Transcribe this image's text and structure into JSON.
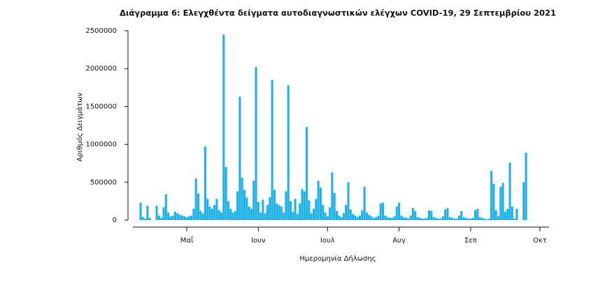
{
  "chart_data": {
    "type": "bar",
    "title": "Διάγραμμα 6: Ελεγχθέντα δείγματα αυτοδιαγνωστικών ελέγχων COVID-19, 29 Σεπτεμβρίου 2021",
    "x_label": "Ημερομηνία Δήλωσης",
    "y_label": "Αριθμός Δειγμάτων",
    "color": "#1ab0e8",
    "ylim": [
      0,
      2500000
    ],
    "yticks": [
      0,
      500000,
      1000000,
      1500000,
      2000000,
      2500000
    ],
    "categories": [
      null,
      null,
      null,
      null,
      null,
      null,
      null,
      null,
      null,
      null,
      null,
      null,
      null,
      null,
      null,
      null,
      null,
      null,
      null,
      null,
      "Μαΐ",
      null,
      null,
      null,
      null,
      null,
      null,
      null,
      null,
      null,
      null,
      null,
      null,
      null,
      null,
      null,
      null,
      null,
      null,
      null,
      null,
      null,
      null,
      null,
      null,
      null,
      null,
      null,
      null,
      null,
      null,
      "Ιουν",
      null,
      null,
      null,
      null,
      null,
      null,
      null,
      null,
      null,
      null,
      null,
      null,
      null,
      null,
      null,
      null,
      null,
      null,
      null,
      null,
      null,
      null,
      null,
      null,
      null,
      null,
      null,
      null,
      null,
      "Ιουλ",
      null,
      null,
      null,
      null,
      null,
      null,
      null,
      null,
      null,
      null,
      null,
      null,
      null,
      null,
      null,
      null,
      null,
      null,
      null,
      null,
      null,
      null,
      null,
      null,
      null,
      null,
      null,
      null,
      null,
      null,
      "Αυγ",
      null,
      null,
      null,
      null,
      null,
      null,
      null,
      null,
      null,
      null,
      null,
      null,
      null,
      null,
      null,
      null,
      null,
      null,
      null,
      null,
      null,
      null,
      null,
      null,
      null,
      null,
      null,
      null,
      null,
      null,
      "Σεπ",
      null,
      null,
      null,
      null,
      null,
      null,
      null,
      null,
      null,
      null,
      null,
      null,
      null,
      null,
      null,
      null,
      null,
      null,
      null,
      null,
      null,
      null,
      null,
      null,
      null,
      null,
      null,
      null,
      null,
      "Οκτ"
    ],
    "values": [
      230000,
      40000,
      20000,
      190000,
      30000,
      0,
      0,
      190000,
      60000,
      30000,
      170000,
      340000,
      100000,
      50000,
      60000,
      110000,
      90000,
      70000,
      60000,
      50000,
      40000,
      50000,
      60000,
      150000,
      550000,
      350000,
      120000,
      90000,
      970000,
      280000,
      180000,
      150000,
      200000,
      280000,
      130000,
      100000,
      2450000,
      700000,
      250000,
      150000,
      100000,
      120000,
      380000,
      1630000,
      560000,
      400000,
      300000,
      180000,
      150000,
      520000,
      2020000,
      240000,
      100000,
      270000,
      90000,
      200000,
      300000,
      1850000,
      400000,
      220000,
      200000,
      180000,
      100000,
      380000,
      1780000,
      250000,
      110000,
      280000,
      80000,
      220000,
      410000,
      380000,
      1230000,
      260000,
      90000,
      150000,
      280000,
      520000,
      430000,
      200000,
      100000,
      50000,
      170000,
      630000,
      360000,
      120000,
      60000,
      40000,
      90000,
      200000,
      500000,
      140000,
      80000,
      60000,
      40000,
      60000,
      130000,
      440000,
      100000,
      70000,
      50000,
      30000,
      40000,
      60000,
      220000,
      230000,
      60000,
      40000,
      30000,
      30000,
      50000,
      180000,
      230000,
      60000,
      40000,
      30000,
      20000,
      60000,
      160000,
      120000,
      40000,
      30000,
      20000,
      20000,
      30000,
      130000,
      120000,
      40000,
      30000,
      20000,
      20000,
      50000,
      140000,
      160000,
      40000,
      30000,
      20000,
      20000,
      60000,
      120000,
      40000,
      30000,
      20000,
      20000,
      30000,
      130000,
      150000,
      40000,
      30000,
      20000,
      10000,
      20000,
      650000,
      480000,
      130000,
      50000,
      440000,
      490000,
      110000,
      150000,
      760000,
      180000,
      20000,
      150000,
      0,
      0,
      500000,
      890000,
      null,
      null,
      null,
      null,
      null,
      null
    ]
  }
}
